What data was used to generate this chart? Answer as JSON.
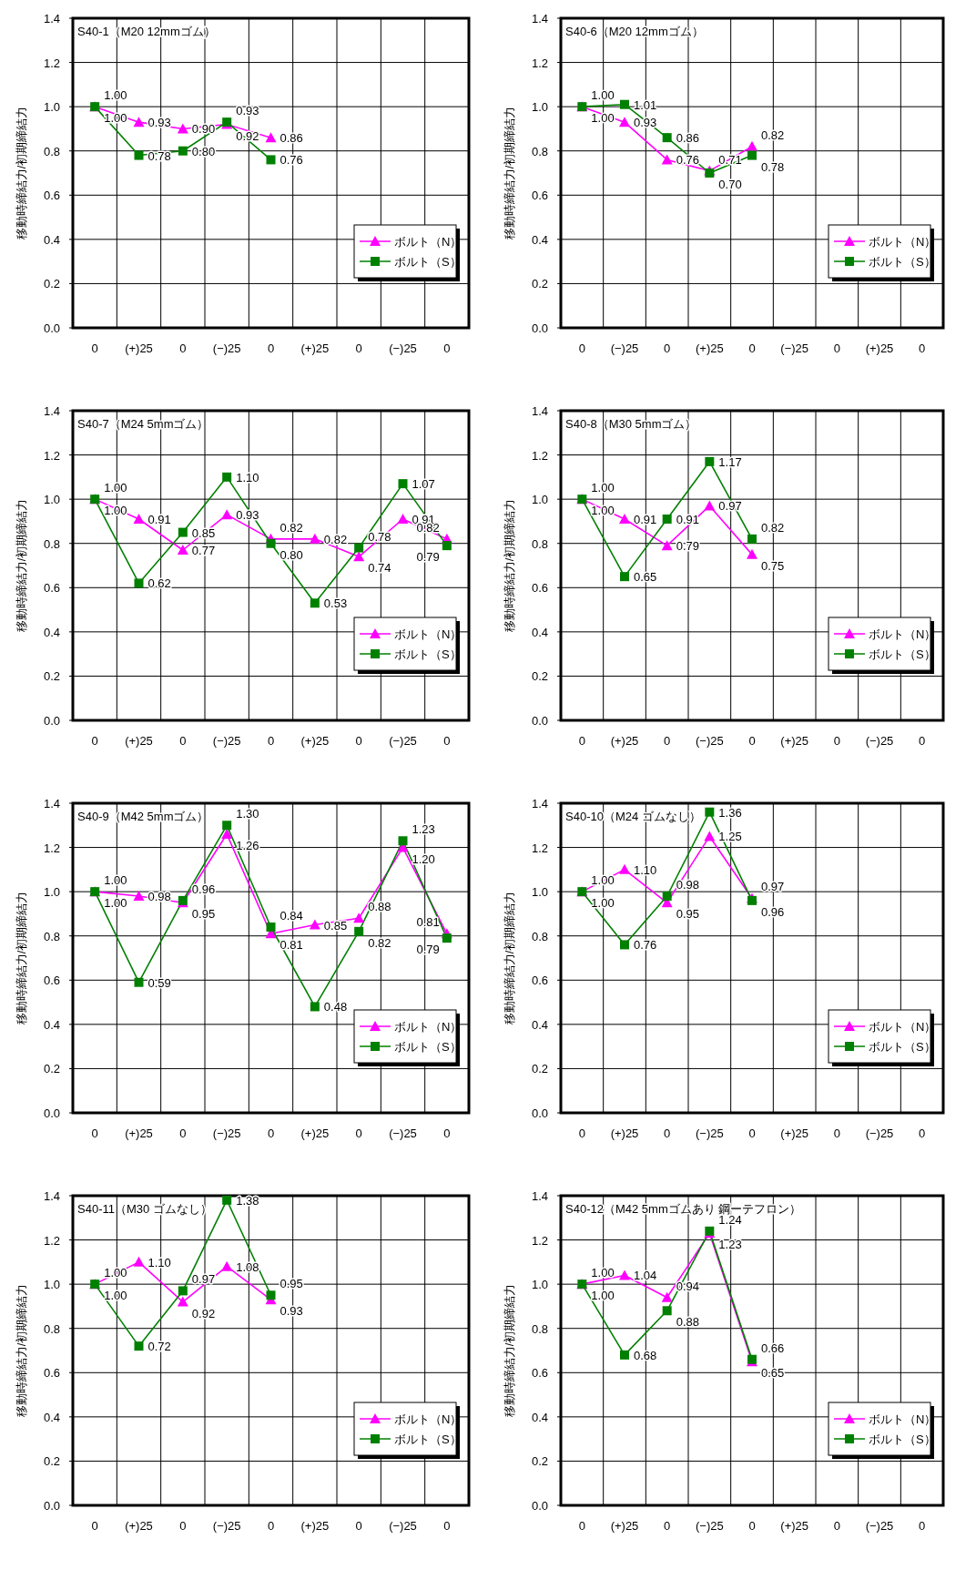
{
  "chart_data": [
    {
      "type": "line",
      "title": "S40-1（M20 12mmゴム）",
      "ylabel": "移動時締結力/初期締結力",
      "categories": [
        "0",
        "(+)25",
        "0",
        "(−)25",
        "0",
        "(+)25",
        "0",
        "(−)25",
        "0"
      ],
      "ylim": [
        0,
        1.4
      ],
      "yticks": [
        {
          "value": 0,
          "label": "0.0"
        },
        {
          "value": 0.2,
          "label": "0.2"
        },
        {
          "value": 0.4,
          "label": "0.4"
        },
        {
          "value": 0.6,
          "label": "0.6"
        },
        {
          "value": 0.8,
          "label": "0.8"
        },
        {
          "value": 1,
          "label": "1.0"
        },
        {
          "value": 1.2,
          "label": "1.2"
        },
        {
          "value": 1.4,
          "label": "1.4"
        }
      ],
      "grid": true,
      "legend": "bottom right",
      "series": [
        {
          "name": "ボルト（N）",
          "color": "#ff00ff",
          "marker": "triangle",
          "values": [
            1.0,
            0.93,
            0.9,
            0.92,
            0.86,
            null,
            null,
            null,
            null
          ],
          "value_labels": [
            "1.00",
            "0.93",
            "0.90",
            "0.92",
            "0.86",
            null,
            null,
            null,
            null
          ]
        },
        {
          "name": "ボルト（S）",
          "color": "#008000",
          "marker": "square",
          "values": [
            1.0,
            0.78,
            0.8,
            0.93,
            0.76,
            null,
            null,
            null,
            null
          ],
          "value_labels": [
            "1.00",
            "0.78",
            "0.80",
            "0.93",
            "0.76",
            null,
            null,
            null,
            null
          ]
        }
      ]
    },
    {
      "type": "line",
      "title": "S40-6（M20 12mmゴム）",
      "ylabel": "移動時締結力/初期締結力",
      "categories": [
        "0",
        "(−)25",
        "0",
        "(+)25",
        "0",
        "(−)25",
        "0",
        "(+)25",
        "0"
      ],
      "ylim": [
        0,
        1.4
      ],
      "yticks": [
        {
          "value": 0,
          "label": "0.0"
        },
        {
          "value": 0.2,
          "label": "0.2"
        },
        {
          "value": 0.4,
          "label": "0.4"
        },
        {
          "value": 0.6,
          "label": "0.6"
        },
        {
          "value": 0.8,
          "label": "0.8"
        },
        {
          "value": 1,
          "label": "1.0"
        },
        {
          "value": 1.2,
          "label": "1.2"
        },
        {
          "value": 1.4,
          "label": "1.4"
        }
      ],
      "grid": true,
      "legend": "bottom right",
      "series": [
        {
          "name": "ボルト（N）",
          "color": "#ff00ff",
          "marker": "triangle",
          "values": [
            1.0,
            0.93,
            0.76,
            0.71,
            0.82,
            null,
            null,
            null,
            null
          ],
          "value_labels": [
            "1.00",
            "0.93",
            "0.76",
            "0.71",
            "0.82",
            null,
            null,
            null,
            null
          ]
        },
        {
          "name": "ボルト（S）",
          "color": "#008000",
          "marker": "square",
          "values": [
            1.0,
            1.01,
            0.86,
            0.7,
            0.78,
            null,
            null,
            null,
            null
          ],
          "value_labels": [
            "1.00",
            "1.01",
            "0.86",
            "0.70",
            "0.78",
            null,
            null,
            null,
            null
          ]
        }
      ]
    },
    {
      "type": "line",
      "title": "S40-7（M24 5mmゴム）",
      "ylabel": "移動時締結力/初期締結力",
      "categories": [
        "0",
        "(+)25",
        "0",
        "(−)25",
        "0",
        "(+)25",
        "0",
        "(−)25",
        "0"
      ],
      "ylim": [
        0,
        1.4
      ],
      "yticks": [
        {
          "value": 0,
          "label": "0.0"
        },
        {
          "value": 0.2,
          "label": "0.2"
        },
        {
          "value": 0.4,
          "label": "0.4"
        },
        {
          "value": 0.6,
          "label": "0.6"
        },
        {
          "value": 0.8,
          "label": "0.8"
        },
        {
          "value": 1,
          "label": "1.0"
        },
        {
          "value": 1.2,
          "label": "1.2"
        },
        {
          "value": 1.4,
          "label": "1.4"
        }
      ],
      "grid": true,
      "legend": "bottom right",
      "series": [
        {
          "name": "ボルト（N）",
          "color": "#ff00ff",
          "marker": "triangle",
          "values": [
            1.0,
            0.91,
            0.77,
            0.93,
            0.82,
            0.82,
            0.74,
            0.91,
            0.82
          ],
          "value_labels": [
            "1.00",
            "0.91",
            "0.77",
            "0.93",
            "0.82",
            "0.82",
            "0.74",
            "0.91",
            "0.82"
          ]
        },
        {
          "name": "ボルト（S）",
          "color": "#008000",
          "marker": "square",
          "values": [
            1.0,
            0.62,
            0.85,
            1.1,
            0.8,
            0.53,
            0.78,
            1.07,
            0.79
          ],
          "value_labels": [
            "1.00",
            "0.62",
            "0.85",
            "1.10",
            "0.80",
            "0.53",
            "0.78",
            "1.07",
            "0.79"
          ]
        }
      ]
    },
    {
      "type": "line",
      "title": "S40-8（M30 5mmゴム）",
      "ylabel": "移動時締結力/初期締結力",
      "categories": [
        "0",
        "(+)25",
        "0",
        "(−)25",
        "0",
        "(+)25",
        "0",
        "(−)25",
        "0"
      ],
      "ylim": [
        0,
        1.4
      ],
      "yticks": [
        {
          "value": 0,
          "label": "0.0"
        },
        {
          "value": 0.2,
          "label": "0.2"
        },
        {
          "value": 0.4,
          "label": "0.4"
        },
        {
          "value": 0.6,
          "label": "0.6"
        },
        {
          "value": 0.8,
          "label": "0.8"
        },
        {
          "value": 1,
          "label": "1.0"
        },
        {
          "value": 1.2,
          "label": "1.2"
        },
        {
          "value": 1.4,
          "label": "1.4"
        }
      ],
      "grid": true,
      "legend": "bottom right",
      "series": [
        {
          "name": "ボルト（N）",
          "color": "#ff00ff",
          "marker": "triangle",
          "values": [
            1.0,
            0.91,
            0.79,
            0.97,
            0.75,
            null,
            null,
            null,
            null
          ],
          "value_labels": [
            "1.00",
            "0.91",
            "0.79",
            "0.97",
            "0.75",
            null,
            null,
            null,
            null
          ]
        },
        {
          "name": "ボルト（S）",
          "color": "#008000",
          "marker": "square",
          "values": [
            1.0,
            0.65,
            0.91,
            1.17,
            0.82,
            null,
            null,
            null,
            null
          ],
          "value_labels": [
            "1.00",
            "0.65",
            "0.91",
            "1.17",
            "0.82",
            null,
            null,
            null,
            null
          ]
        }
      ]
    },
    {
      "type": "line",
      "title": "S40-9（M42 5mmゴム）",
      "ylabel": "移動時締結力/初期締結力",
      "categories": [
        "0",
        "(+)25",
        "0",
        "(−)25",
        "0",
        "(+)25",
        "0",
        "(−)25",
        "0"
      ],
      "ylim": [
        0,
        1.4
      ],
      "yticks": [
        {
          "value": 0,
          "label": "0.0"
        },
        {
          "value": 0.2,
          "label": "0.2"
        },
        {
          "value": 0.4,
          "label": "0.4"
        },
        {
          "value": 0.6,
          "label": "0.6"
        },
        {
          "value": 0.8,
          "label": "0.8"
        },
        {
          "value": 1,
          "label": "1.0"
        },
        {
          "value": 1.2,
          "label": "1.2"
        },
        {
          "value": 1.4,
          "label": "1.4"
        }
      ],
      "grid": true,
      "legend": "bottom right",
      "series": [
        {
          "name": "ボルト（N）",
          "color": "#ff00ff",
          "marker": "triangle",
          "values": [
            1.0,
            0.98,
            0.95,
            1.26,
            0.81,
            0.85,
            0.88,
            1.2,
            0.81
          ],
          "value_labels": [
            "1.00",
            "0.98",
            "0.95",
            "1.26",
            "0.81",
            "0.85",
            "0.88",
            "1.20",
            "0.81"
          ]
        },
        {
          "name": "ボルト（S）",
          "color": "#008000",
          "marker": "square",
          "values": [
            1.0,
            0.59,
            0.96,
            1.3,
            0.84,
            0.48,
            0.82,
            1.23,
            0.79
          ],
          "value_labels": [
            "1.00",
            "0.59",
            "0.96",
            "1.30",
            "0.84",
            "0.48",
            "0.82",
            "1.23",
            "0.79"
          ]
        }
      ]
    },
    {
      "type": "line",
      "title": "S40-10（M24 ゴムなし）",
      "ylabel": "移動時締結力/初期締結力",
      "categories": [
        "0",
        "(+)25",
        "0",
        "(−)25",
        "0",
        "(+)25",
        "0",
        "(−)25",
        "0"
      ],
      "ylim": [
        0,
        1.4
      ],
      "yticks": [
        {
          "value": 0,
          "label": "0.0"
        },
        {
          "value": 0.2,
          "label": "0.2"
        },
        {
          "value": 0.4,
          "label": "0.4"
        },
        {
          "value": 0.6,
          "label": "0.6"
        },
        {
          "value": 0.8,
          "label": "0.8"
        },
        {
          "value": 1,
          "label": "1.0"
        },
        {
          "value": 1.2,
          "label": "1.2"
        },
        {
          "value": 1.4,
          "label": "1.4"
        }
      ],
      "grid": true,
      "legend": "bottom right",
      "series": [
        {
          "name": "ボルト（N）",
          "color": "#ff00ff",
          "marker": "triangle",
          "values": [
            1.0,
            1.1,
            0.95,
            1.25,
            0.97,
            null,
            null,
            null,
            null
          ],
          "value_labels": [
            "1.00",
            "1.10",
            "0.95",
            "1.25",
            "0.97",
            null,
            null,
            null,
            null
          ]
        },
        {
          "name": "ボルト（S）",
          "color": "#008000",
          "marker": "square",
          "values": [
            1.0,
            0.76,
            0.98,
            1.36,
            0.96,
            null,
            null,
            null,
            null
          ],
          "value_labels": [
            "1.00",
            "0.76",
            "0.98",
            "1.36",
            "0.96",
            null,
            null,
            null,
            null
          ]
        }
      ]
    },
    {
      "type": "line",
      "title": "S40-11（M30 ゴムなし）",
      "ylabel": "移動時締結力/初期締結力",
      "categories": [
        "0",
        "(+)25",
        "0",
        "(−)25",
        "0",
        "(+)25",
        "0",
        "(−)25",
        "0"
      ],
      "ylim": [
        0,
        1.4
      ],
      "yticks": [
        {
          "value": 0,
          "label": "0.0"
        },
        {
          "value": 0.2,
          "label": "0.2"
        },
        {
          "value": 0.4,
          "label": "0.4"
        },
        {
          "value": 0.6,
          "label": "0.6"
        },
        {
          "value": 0.8,
          "label": "0.8"
        },
        {
          "value": 1,
          "label": "1.0"
        },
        {
          "value": 1.2,
          "label": "1.2"
        },
        {
          "value": 1.4,
          "label": "1.4"
        }
      ],
      "grid": true,
      "legend": "bottom right",
      "series": [
        {
          "name": "ボルト（N）",
          "color": "#ff00ff",
          "marker": "triangle",
          "values": [
            1.0,
            1.1,
            0.92,
            1.08,
            0.93,
            null,
            null,
            null,
            null
          ],
          "value_labels": [
            "1.00",
            "1.10",
            "0.92",
            "1.08",
            "0.93",
            null,
            null,
            null,
            null
          ]
        },
        {
          "name": "ボルト（S）",
          "color": "#008000",
          "marker": "square",
          "values": [
            1.0,
            0.72,
            0.97,
            1.38,
            0.95,
            null,
            null,
            null,
            null
          ],
          "value_labels": [
            "1.00",
            "0.72",
            "0.97",
            "1.38",
            "0.95",
            null,
            null,
            null,
            null
          ]
        }
      ]
    },
    {
      "type": "line",
      "title": "S40-12（M42 5mmゴムあり 鋼ーテフロン）",
      "ylabel": "移動時締結力/初期締結力",
      "categories": [
        "0",
        "(+)25",
        "0",
        "(−)25",
        "0",
        "(+)25",
        "0",
        "(−)25",
        "0"
      ],
      "ylim": [
        0,
        1.4
      ],
      "yticks": [
        {
          "value": 0,
          "label": "0.0"
        },
        {
          "value": 0.2,
          "label": "0.2"
        },
        {
          "value": 0.4,
          "label": "0.4"
        },
        {
          "value": 0.6,
          "label": "0.6"
        },
        {
          "value": 0.8,
          "label": "0.8"
        },
        {
          "value": 1,
          "label": "1.0"
        },
        {
          "value": 1.2,
          "label": "1.2"
        },
        {
          "value": 1.4,
          "label": "1.4"
        }
      ],
      "grid": true,
      "legend": "bottom right",
      "series": [
        {
          "name": "ボルト（N）",
          "color": "#ff00ff",
          "marker": "triangle",
          "values": [
            1.0,
            1.04,
            0.94,
            1.23,
            0.65,
            null,
            null,
            null,
            null
          ],
          "value_labels": [
            "1.00",
            "1.04",
            "0.94",
            "1.23",
            "0.65",
            null,
            null,
            null,
            null
          ]
        },
        {
          "name": "ボルト（S）",
          "color": "#008000",
          "marker": "square",
          "values": [
            1.0,
            0.68,
            0.88,
            1.24,
            0.66,
            null,
            null,
            null,
            null
          ],
          "value_labels": [
            "1.00",
            "0.68",
            "0.88",
            "1.24",
            "0.66",
            null,
            null,
            null,
            null
          ]
        }
      ]
    }
  ]
}
